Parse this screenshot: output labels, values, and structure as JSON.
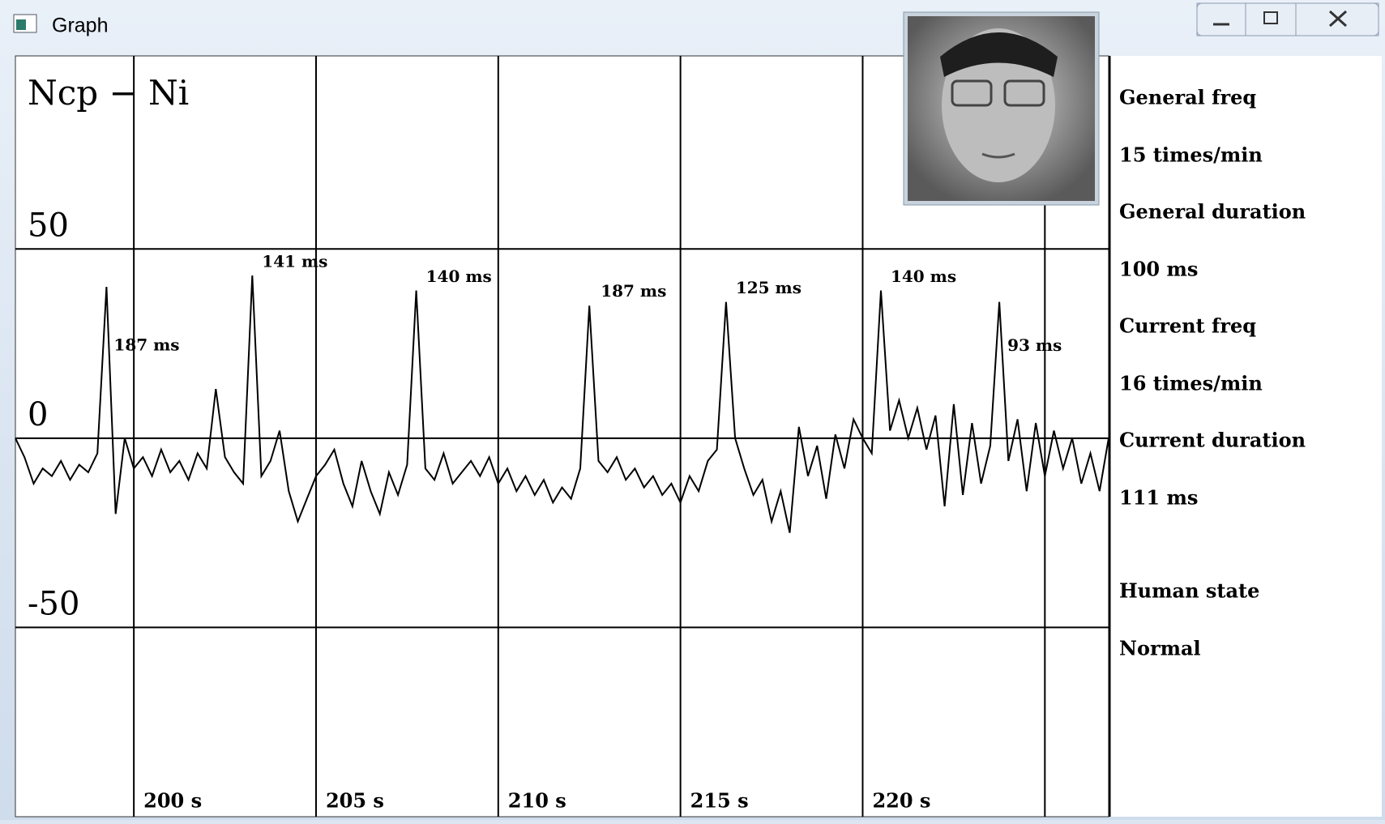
{
  "window": {
    "title": "Graph"
  },
  "chart_data": {
    "type": "line",
    "title": "Ncp − Ni",
    "color": "#000000",
    "x": [
      196.75,
      197,
      197.25,
      197.5,
      197.75,
      198,
      198.25,
      198.5,
      198.75,
      199,
      199.25,
      199.5,
      199.75,
      200,
      200.25,
      200.5,
      200.75,
      201,
      201.25,
      201.5,
      201.75,
      202,
      202.25,
      202.5,
      202.75,
      203,
      203.25,
      203.5,
      203.75,
      204,
      204.25,
      204.5,
      204.75,
      205,
      205.25,
      205.5,
      205.75,
      206,
      206.25,
      206.5,
      206.75,
      207,
      207.25,
      207.5,
      207.75,
      208,
      208.25,
      208.5,
      208.75,
      209,
      209.25,
      209.5,
      209.75,
      210,
      210.25,
      210.5,
      210.75,
      211,
      211.25,
      211.5,
      211.75,
      212,
      212.25,
      212.5,
      212.75,
      213,
      213.25,
      213.5,
      213.75,
      214,
      214.25,
      214.5,
      214.75,
      215,
      215.25,
      215.5,
      215.75,
      216,
      216.25,
      216.5,
      216.75,
      217,
      217.25,
      217.5,
      217.75,
      218,
      218.25,
      218.5,
      218.75,
      219,
      219.25,
      219.5,
      219.75,
      220,
      220.25,
      220.5,
      220.75,
      221,
      221.25,
      221.5,
      221.75,
      222,
      222.25,
      222.5,
      222.75,
      223,
      223.25,
      223.5,
      223.75,
      224,
      224.25,
      224.5,
      224.75,
      225,
      225.25,
      225.5,
      225.75,
      226,
      226.25,
      226.5,
      226.75
    ],
    "values": [
      0,
      -5,
      -12,
      -8,
      -10,
      -6,
      -11,
      -7,
      -9,
      -4,
      40,
      -20,
      0,
      -8,
      -5,
      -10,
      -3,
      -9,
      -6,
      -11,
      -4,
      -8,
      13,
      -5,
      -9,
      -12,
      43,
      -10,
      -6,
      2,
      -14,
      -22,
      -16,
      -10,
      -7,
      -3,
      -12,
      -18,
      -6,
      -14,
      -20,
      -9,
      -15,
      -7,
      39,
      -8,
      -11,
      -4,
      -12,
      -9,
      -6,
      -10,
      -5,
      -12,
      -8,
      -14,
      -10,
      -15,
      -11,
      -17,
      -13,
      -16,
      -8,
      35,
      -6,
      -9,
      -5,
      -11,
      -8,
      -13,
      -10,
      -15,
      -12,
      -17,
      -10,
      -14,
      -6,
      -3,
      36,
      0,
      -8,
      -15,
      -11,
      -22,
      -14,
      -25,
      3,
      -10,
      -2,
      -16,
      1,
      -8,
      5,
      0,
      -4,
      39,
      2,
      10,
      0,
      8,
      -3,
      6,
      -18,
      9,
      -15,
      4,
      -12,
      -2,
      36,
      -6,
      5,
      -14,
      4,
      -10,
      2,
      -8,
      0,
      -12,
      -4,
      -14,
      0
    ],
    "xlim": [
      196.75,
      226.75
    ],
    "ylim": [
      -100,
      101
    ],
    "xticks": [
      {
        "value": 200,
        "label": "200 s"
      },
      {
        "value": 205,
        "label": "205 s"
      },
      {
        "value": 210,
        "label": "210 s"
      },
      {
        "value": 215,
        "label": "215 s"
      },
      {
        "value": 220,
        "label": "220 s"
      },
      {
        "value": 225,
        "label": null
      }
    ],
    "yticks": [
      50,
      0,
      -50
    ],
    "grid": true,
    "annotations": [
      "187 ms",
      "141 ms",
      "140 ms",
      "187 ms",
      "125 ms",
      "140 ms",
      "93 ms"
    ]
  },
  "side_panel": [
    {
      "label": "General freq",
      "value": "15 times/min"
    },
    {
      "label": "General duration",
      "value": "100 ms"
    },
    {
      "label": "Current freq",
      "value": "16 times/min"
    },
    {
      "label": "Current duration",
      "value": "111 ms"
    }
  ],
  "state": {
    "label": "Human state",
    "value": "Normal"
  }
}
